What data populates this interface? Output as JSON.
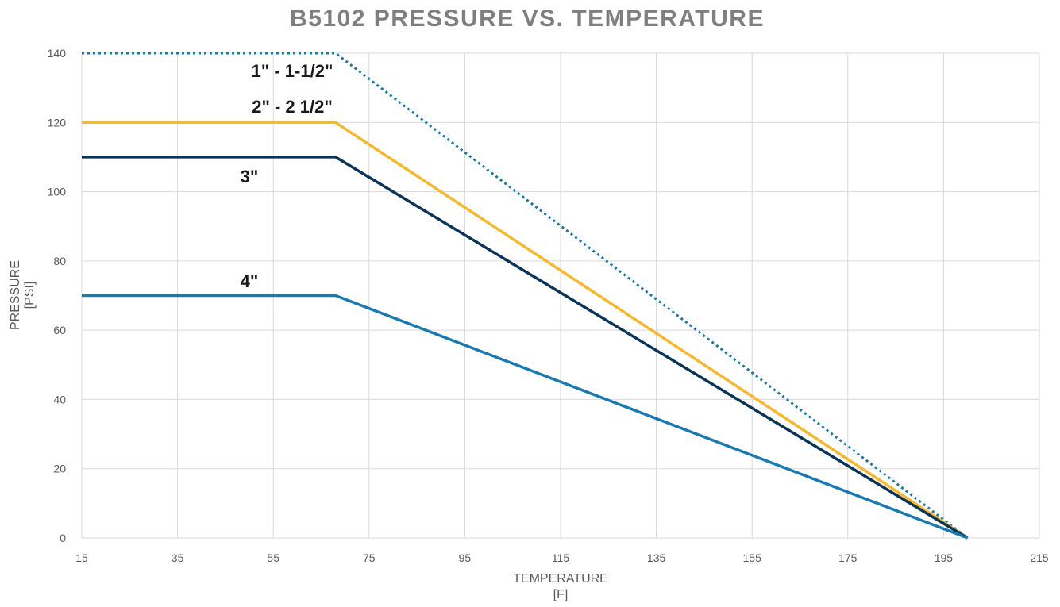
{
  "chart_data": {
    "type": "line",
    "title": "B5102 PRESSURE VS. TEMPERATURE",
    "xlabel": [
      "TEMPERATURE",
      "[F]"
    ],
    "ylabel": [
      "PRESSURE",
      "[PSI]"
    ],
    "xlim": [
      15,
      215
    ],
    "ylim": [
      0,
      140
    ],
    "xticks": [
      15,
      35,
      55,
      75,
      95,
      115,
      135,
      155,
      175,
      195,
      215
    ],
    "yticks": [
      0,
      20,
      40,
      60,
      80,
      100,
      120,
      140
    ],
    "grid": true,
    "legend": "none",
    "series": [
      {
        "name": "1\" - 1-1/2\"",
        "color": "#1a7aa3",
        "dash": "dotted",
        "x": [
          15,
          68,
          200
        ],
        "y": [
          140,
          140,
          0
        ]
      },
      {
        "name": "2\" - 2 1/2\"",
        "color": "#f5b82e",
        "dash": "solid",
        "x": [
          15,
          68,
          200
        ],
        "y": [
          120,
          120,
          0
        ]
      },
      {
        "name": "3\"",
        "color": "#0c3457",
        "dash": "solid",
        "x": [
          15,
          68,
          200
        ],
        "y": [
          110,
          110,
          0
        ]
      },
      {
        "name": "4\"",
        "color": "#1a7ab0",
        "dash": "solid",
        "x": [
          15,
          68,
          200
        ],
        "y": [
          70,
          70,
          0
        ]
      }
    ]
  }
}
